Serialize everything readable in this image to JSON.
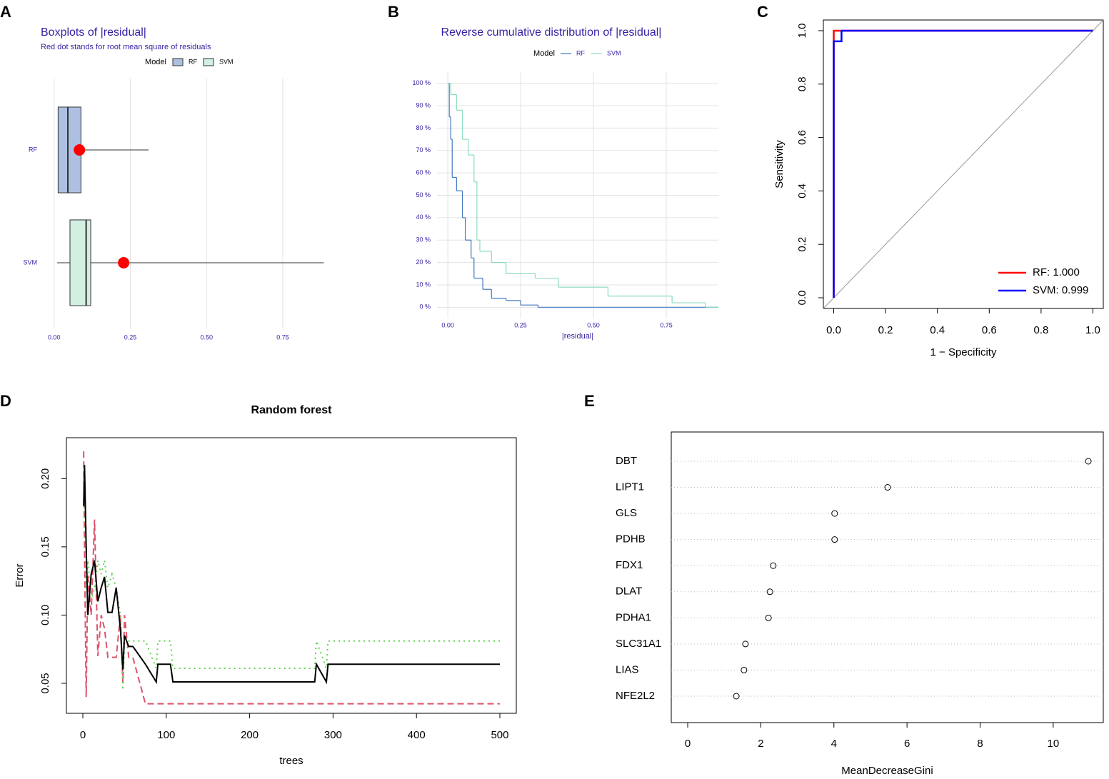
{
  "chart_data": [
    {
      "type": "boxplot",
      "panel_label": "A",
      "title": "Boxplots of |residual|",
      "subtitle": "Red dot stands for root mean square of residuals",
      "legend_title": "Model",
      "xlim": [
        -0.03,
        0.9
      ],
      "xticks": [
        {
          "value": 0,
          "label": "0.00"
        },
        0.25,
        {
          "value": 0.5,
          "label": "0.50"
        },
        0.75
      ],
      "grid": true,
      "rms_color": "#ff0000",
      "series": [
        {
          "name": "RF",
          "color": "#aec0e2",
          "min": 0.013,
          "q1": 0.013,
          "median": 0.045,
          "q3": 0.088,
          "max": 0.31,
          "rms": 0.083
        },
        {
          "name": "SVM",
          "color": "#d2efe2",
          "min": 0.01,
          "q1": 0.052,
          "median": 0.105,
          "q3": 0.12,
          "max": 0.885,
          "rms": 0.228
        }
      ]
    },
    {
      "type": "step",
      "panel_label": "B",
      "title": "Reverse cumulative distribution of |residual|",
      "legend_title": "Model",
      "xlabel": "|residual|",
      "xlim": [
        -0.037,
        0.929
      ],
      "xticks": [
        {
          "value": 0,
          "label": "0.00"
        },
        0.25,
        {
          "value": 0.5,
          "label": "0.50"
        },
        0.75
      ],
      "ylim": [
        -5,
        105
      ],
      "yticks": [
        {
          "value": 0,
          "label": "0 %"
        },
        {
          "value": 10,
          "label": "10 %"
        },
        {
          "value": 20,
          "label": "20 %"
        },
        {
          "value": 30,
          "label": "30 %"
        },
        {
          "value": 40,
          "label": "40 %"
        },
        {
          "value": 50,
          "label": "50 %"
        },
        {
          "value": 60,
          "label": "60 %"
        },
        {
          "value": 70,
          "label": "70 %"
        },
        {
          "value": 80,
          "label": "80 %"
        },
        {
          "value": 90,
          "label": "90 %"
        },
        {
          "value": 100,
          "label": "100 %"
        }
      ],
      "grid": true,
      "series": [
        {
          "name": "RF",
          "color": "#4378bf",
          "x": [
            0,
            0.005,
            0.01,
            0.015,
            0.03,
            0.05,
            0.06,
            0.08,
            0.09,
            0.12,
            0.15,
            0.2,
            0.25,
            0.31
          ],
          "values": [
            100,
            85,
            75,
            58,
            52,
            40,
            30,
            22,
            13,
            8,
            4,
            3,
            1,
            0
          ]
        },
        {
          "name": "SVM",
          "color": "#8bdcbe",
          "x": [
            0,
            0.01,
            0.03,
            0.05,
            0.07,
            0.09,
            0.1,
            0.11,
            0.15,
            0.2,
            0.3,
            0.38,
            0.55,
            0.77,
            0.885
          ],
          "values": [
            100,
            95,
            88,
            75,
            68,
            56,
            30,
            25,
            20,
            15,
            13,
            9,
            5,
            2,
            0
          ]
        }
      ]
    },
    {
      "type": "line",
      "panel_label": "C",
      "xlabel": "1 − Specificity",
      "ylabel": "Sensitivity",
      "xlim": [
        -0.04,
        1.04
      ],
      "ylim": [
        -0.04,
        1.04
      ],
      "xticks": [
        {
          "value": 0,
          "label": "0.0"
        },
        0.2,
        0.4,
        0.6,
        0.8,
        {
          "value": 1,
          "label": "1.0"
        }
      ],
      "yticks": [
        {
          "value": 0,
          "label": "0.0"
        },
        0.2,
        0.4,
        0.6,
        0.8,
        {
          "value": 1,
          "label": "1.0"
        }
      ],
      "diagonal": true,
      "legend": "bottomright",
      "series": [
        {
          "name": "RF: 1.000",
          "color": "#ff0000",
          "x": [
            0,
            0,
            1
          ],
          "values": [
            0,
            1,
            1
          ]
        },
        {
          "name": "SVM: 0.999",
          "color": "#0000ff",
          "x": [
            0,
            0,
            0.03,
            0.03,
            1
          ],
          "values": [
            0,
            0.96,
            0.96,
            1,
            1
          ]
        }
      ]
    },
    {
      "type": "line",
      "panel_label": "D",
      "title": "Random forest",
      "xlabel": "trees",
      "ylabel": "Error",
      "xlim": [
        -19.7,
        519.7
      ],
      "ylim": [
        0.028,
        0.23
      ],
      "xticks": [
        0,
        100,
        200,
        300,
        400,
        500
      ],
      "yticks": [
        0.05,
        {
          "value": 0.1,
          "label": "0.10"
        },
        0.15,
        {
          "value": 0.2,
          "label": "0.20"
        }
      ],
      "x": [
        1,
        2,
        4,
        6,
        10,
        14,
        18,
        22,
        26,
        30,
        35,
        40,
        45,
        48,
        50,
        55,
        60,
        75,
        88,
        90,
        105,
        108,
        200,
        278,
        280,
        292,
        294,
        300,
        400,
        500
      ],
      "series": [
        {
          "color": "#df536b",
          "dash": "dashed",
          "values": [
            0.22,
            0.15,
            0.04,
            0.13,
            0.1,
            0.17,
            0.07,
            0.1,
            0.09,
            0.069,
            0.069,
            0.069,
            0.1,
            0.05,
            0.1,
            0.069,
            0.069,
            0.035,
            0.035,
            0.035,
            0.035,
            0.035,
            0.035,
            0.035,
            0.035,
            0.035,
            0.035,
            0.035,
            0.035,
            0.035
          ]
        },
        {
          "color": "#61d04f",
          "dash": "dotted",
          "values": [
            0.18,
            0.2,
            0.12,
            0.14,
            0.11,
            0.12,
            0.14,
            0.13,
            0.14,
            0.12,
            0.13,
            0.12,
            0.1,
            0.045,
            0.08,
            0.081,
            0.081,
            0.081,
            0.061,
            0.081,
            0.081,
            0.061,
            0.061,
            0.061,
            0.081,
            0.061,
            0.081,
            0.081,
            0.081,
            0.081
          ]
        },
        {
          "color": "#000000",
          "dash": "solid",
          "values": [
            0.18,
            0.21,
            0.15,
            0.1,
            0.13,
            0.14,
            0.11,
            0.12,
            0.128,
            0.102,
            0.102,
            0.12,
            0.09,
            0.06,
            0.085,
            0.077,
            0.077,
            0.064,
            0.051,
            0.064,
            0.064,
            0.051,
            0.051,
            0.051,
            0.064,
            0.051,
            0.064,
            0.064,
            0.064,
            0.064
          ]
        }
      ]
    },
    {
      "type": "dot",
      "panel_label": "E",
      "xlabel": "MeanDecreaseGini",
      "xlim": [
        -0.45,
        11.37
      ],
      "xticks": [
        0,
        2,
        4,
        6,
        8,
        10
      ],
      "categories": [
        "DBT",
        "LIPT1",
        "GLS",
        "PDHB",
        "FDX1",
        "DLAT",
        "PDHA1",
        "SLC31A1",
        "LIAS",
        "NFE2L2"
      ],
      "values": [
        10.96,
        5.47,
        4.02,
        4.02,
        2.34,
        2.25,
        2.21,
        1.58,
        1.54,
        1.33
      ]
    }
  ]
}
